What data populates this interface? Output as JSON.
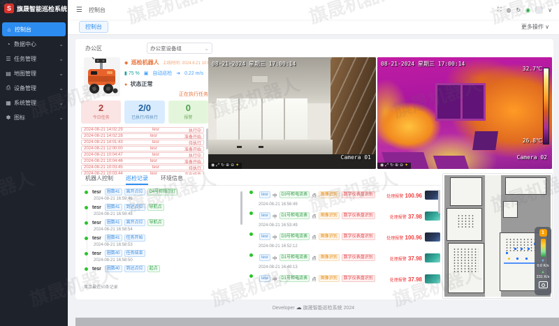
{
  "app": {
    "title": "旗晟智能巡检系统",
    "logo_letter": "S",
    "watermark": "旗晟机器人"
  },
  "icons": {
    "hamburger": "☰",
    "fullscreen": "⛶",
    "message": "◍",
    "refresh": "↻",
    "user": "◉",
    "chevron": "∨",
    "chevron_small": "⌄",
    "robot_dot": "◆",
    "battery": "▮",
    "mode": "▣",
    "speed": "➜",
    "status_dot": "●",
    "cloud": "☁",
    "cam_controls": [
      "◉",
      "⤢",
      "↻",
      "⊕",
      "⊖",
      "✦"
    ]
  },
  "sidebar": {
    "items": [
      {
        "label": "控制台",
        "icon": "home-icon",
        "glyph": "⌂",
        "active": true
      },
      {
        "label": "数据中心",
        "icon": "data-icon",
        "glyph": "◔"
      },
      {
        "label": "任务管理",
        "icon": "tasks-icon",
        "glyph": "☰"
      },
      {
        "label": "地图管理",
        "icon": "map-icon",
        "glyph": "▤"
      },
      {
        "label": "设备管理",
        "icon": "device-icon",
        "glyph": "⎙"
      },
      {
        "label": "系统管理",
        "icon": "system-icon",
        "glyph": "▦"
      },
      {
        "label": "图标",
        "icon": "icons-icon",
        "glyph": "✽"
      }
    ]
  },
  "header": {
    "breadcrumb": "控制台"
  },
  "tabbar": {
    "tab": "控制台",
    "more_actions": "更多操作"
  },
  "filters": {
    "area_label": "办公区",
    "device_group": "办公室设备组"
  },
  "robot": {
    "name": "巡检机器人",
    "online_label": "上线时间:",
    "online_time": "2024.8.21 10:01:03",
    "battery": "75 %",
    "mode": "自动巡检",
    "speed": "0.22 m/s",
    "status": "状态正常",
    "running": "正在执行任务",
    "stats": [
      {
        "value": "2",
        "label": "今日任务"
      },
      {
        "value": "2/0",
        "label": "已执行/待执行"
      },
      {
        "value": "0",
        "label": "报警"
      }
    ],
    "task_logs": [
      {
        "time": "2024-08-21 14:02:29",
        "name": "tesr",
        "status": "执行中"
      },
      {
        "time": "2024-08-21 14:02:28",
        "name": "tesr",
        "status": "准备开始"
      },
      {
        "time": "2024-08-21 14:01:43",
        "name": "tesr",
        "status": "待执行"
      },
      {
        "time": "2024-08-21 12:00:00",
        "name": "tesr",
        "status": "准备开始"
      },
      {
        "time": "2024-08-21 10:04:47",
        "name": "tesr",
        "status": "执行中"
      },
      {
        "time": "2024-08-21 10:04:46",
        "name": "tesr",
        "status": "准备开始"
      },
      {
        "time": "2024-08-21 10:03:45",
        "name": "tesr",
        "status": "待执行"
      },
      {
        "time": "2024-08-21 10:03:44",
        "name": "tesr",
        "status": "正在结束"
      }
    ]
  },
  "cameras": {
    "cam1": {
      "timestamp": "08-21-2024 星期三 17:00:14",
      "label": "Camera 01"
    },
    "cam2": {
      "timestamp": "08-21-2024 星期三 17:00:14",
      "label": "Camera 02",
      "temp_max": "32.7℃",
      "temp_min": "26.8℃"
    }
  },
  "records": {
    "tabs": [
      {
        "label": "机器人控制"
      },
      {
        "label": "巡检记录",
        "active": true
      },
      {
        "label": "环境信息"
      }
    ],
    "left_items": [
      {
        "name": "tesr",
        "tags": [
          [
            "圈数41",
            "blue"
          ],
          [
            "离开点位",
            "blue"
          ],
          [
            "D4号柜指示灯",
            "green"
          ]
        ],
        "time": "2024-08-21 16:59:46"
      },
      {
        "name": "tesr",
        "tags": [
          [
            "圈数41",
            "blue"
          ],
          [
            "到达点位",
            "blue"
          ],
          [
            "导航点",
            "green"
          ]
        ],
        "time": "2024-08-21 16:59:45"
      },
      {
        "name": "tesr",
        "tags": [
          [
            "圈数41",
            "blue"
          ],
          [
            "离开点位",
            "blue"
          ],
          [
            "导航点",
            "green"
          ]
        ],
        "time": "2024-08-21 16:58:54"
      },
      {
        "name": "tesr",
        "tags": [
          [
            "圈数41",
            "blue"
          ],
          [
            "任务开始",
            "blue"
          ]
        ],
        "time": "2024-08-21 16:58:53"
      },
      {
        "name": "tesr",
        "tags": [
          [
            "圈数40",
            "blue"
          ],
          [
            "任务结束",
            "blue"
          ]
        ],
        "time": "2024-08-21 16:58:50"
      },
      {
        "name": "tesr",
        "tags": [
          [
            "圈数40",
            "blue"
          ],
          [
            "到达点位",
            "blue"
          ],
          [
            "起点",
            "green"
          ]
        ],
        "time": ""
      }
    ],
    "right_items": [
      {
        "name": "tesr",
        "sep1": "中",
        "device": "D3号柜电流表",
        "sep2": "点",
        "rec_tags": [
          [
            "图像识别",
            "orange"
          ],
          [
            "数字仪表盘识别",
            "red"
          ]
        ],
        "alarm_label": "处理报警",
        "value": "100.96",
        "time": "2024-08-21 16:56:49",
        "thumb": "dark"
      },
      {
        "name": "tesr",
        "sep1": "中",
        "device": "D1号柜电流表",
        "sep2": "点",
        "rec_tags": [
          [
            "图像识别",
            "orange"
          ],
          [
            "数字仪表盘识别",
            "red"
          ]
        ],
        "alarm_label": "处理报警",
        "value": "37.98",
        "time": "2024-08-21 16:53:49",
        "thumb": "teal"
      },
      {
        "name": "tesr",
        "sep1": "中",
        "device": "D3号柜电流表",
        "sep2": "点",
        "rec_tags": [
          [
            "图像识别",
            "orange"
          ],
          [
            "数字仪表盘识别",
            "red"
          ]
        ],
        "alarm_label": "处理报警",
        "value": "100.96",
        "time": "2024-08-21 16:52:12",
        "thumb": "dark"
      },
      {
        "name": "tesr",
        "sep1": "中",
        "device": "D1号柜电流表",
        "sep2": "点",
        "rec_tags": [
          [
            "图像识别",
            "orange"
          ],
          [
            "数字仪表盘识别",
            "red"
          ]
        ],
        "alarm_label": "处理报警",
        "value": "37.98",
        "time": "2024-08-21 16:49:13",
        "thumb": "teal"
      },
      {
        "name": "tesr",
        "sep1": "中",
        "device": "D1号柜电流表",
        "sep2": "点",
        "rec_tags": [
          [
            "图像识别",
            "orange"
          ],
          [
            "数字仪表盘识别",
            "red"
          ]
        ],
        "alarm_label": "处理报警",
        "value": "37.98",
        "time": "",
        "thumb": "teal"
      }
    ],
    "footer_note": "显示最近50条记录"
  },
  "map_panel": {
    "badge": "1",
    "down_speed": "0.0 K/s",
    "up_speed": "231 K/s"
  },
  "footer": {
    "developer": "Developer",
    "brand": "旗晟智能巡检系统 2024"
  }
}
